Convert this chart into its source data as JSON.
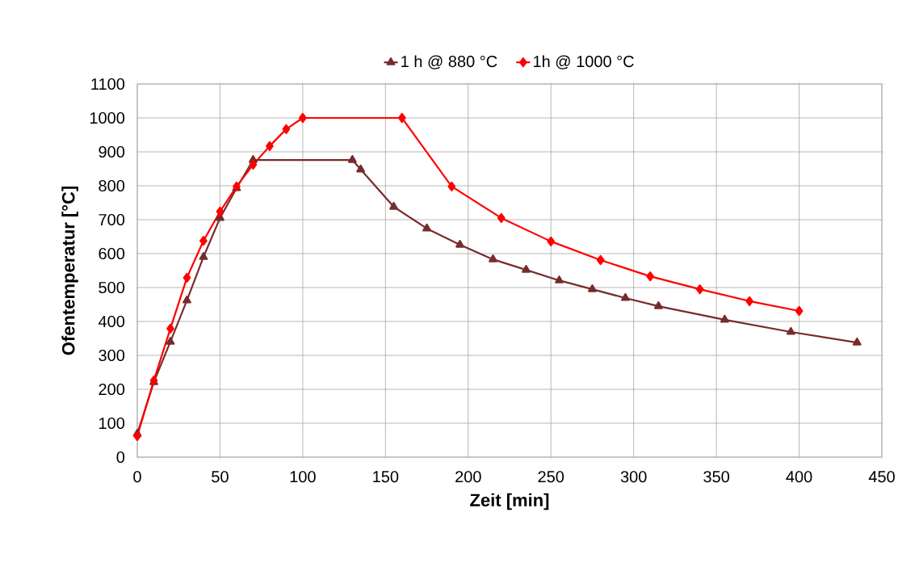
{
  "chart_data": {
    "type": "line",
    "xlabel": "Zeit [min]",
    "ylabel": "Ofentemperatur [°C]",
    "xlim": [
      0,
      450
    ],
    "xticks": [
      0,
      50,
      100,
      150,
      200,
      250,
      300,
      350,
      400,
      450
    ],
    "ylim": [
      0,
      1100
    ],
    "yticks": [
      0,
      100,
      200,
      300,
      400,
      500,
      600,
      700,
      800,
      900,
      1000,
      1100
    ],
    "grid": true,
    "legend": "top",
    "line_style": "solid",
    "series": [
      {
        "name": "1 h @ 880 °C",
        "color": "#772c2c",
        "marker": "triangle",
        "x": [
          0,
          10,
          20,
          30,
          40,
          50,
          60,
          70,
          130,
          135,
          155,
          175,
          195,
          215,
          235,
          255,
          275,
          295,
          315,
          355,
          395,
          435
        ],
        "values": [
          69,
          221,
          340,
          462,
          590,
          705,
          793,
          876,
          876,
          848,
          738,
          674,
          626,
          583,
          552,
          521,
          495,
          469,
          445,
          405,
          369,
          338
        ]
      },
      {
        "name": "1h @ 1000 °C",
        "color": "#ff0000",
        "marker": "diamond",
        "x": [
          0,
          10,
          20,
          30,
          40,
          50,
          60,
          70,
          80,
          90,
          100,
          160,
          190,
          220,
          250,
          280,
          310,
          340,
          370,
          400
        ],
        "values": [
          62,
          226,
          379,
          529,
          638,
          724,
          798,
          862,
          917,
          967,
          1000,
          1000,
          798,
          705,
          636,
          581,
          533,
          495,
          460,
          431
        ]
      }
    ]
  }
}
